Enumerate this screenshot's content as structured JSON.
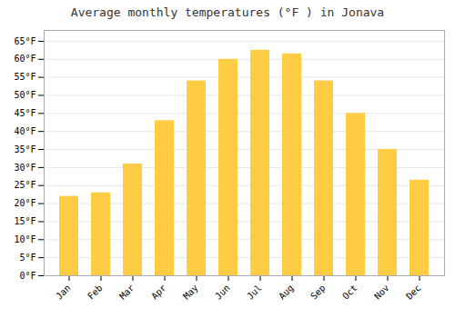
{
  "chart_data": {
    "type": "bar",
    "title": "Average monthly temperatures (°F ) in Jonava",
    "categories": [
      "Jan",
      "Feb",
      "Mar",
      "Apr",
      "May",
      "Jun",
      "Jul",
      "Aug",
      "Sep",
      "Oct",
      "Nov",
      "Dec"
    ],
    "values": [
      22,
      23,
      31,
      43,
      54,
      60,
      62.5,
      61.5,
      54,
      45,
      35,
      26.5
    ],
    "color": "#FFCC44",
    "ylim": [
      0,
      68
    ],
    "yticks": [
      {
        "value": 0,
        "label": "0°F"
      },
      {
        "value": 5,
        "label": "5°F"
      },
      {
        "value": 10,
        "label": "10°F"
      },
      {
        "value": 15,
        "label": "15°F"
      },
      {
        "value": 20,
        "label": "20°F"
      },
      {
        "value": 25,
        "label": "25°F"
      },
      {
        "value": 30,
        "label": "30°F"
      },
      {
        "value": 35,
        "label": "35°F"
      },
      {
        "value": 40,
        "label": "40°F"
      },
      {
        "value": 45,
        "label": "45°F"
      },
      {
        "value": 50,
        "label": "50°F"
      },
      {
        "value": 55,
        "label": "55°F"
      },
      {
        "value": 60,
        "label": "60°F"
      },
      {
        "value": 65,
        "label": "65°F"
      }
    ],
    "grid": true
  }
}
